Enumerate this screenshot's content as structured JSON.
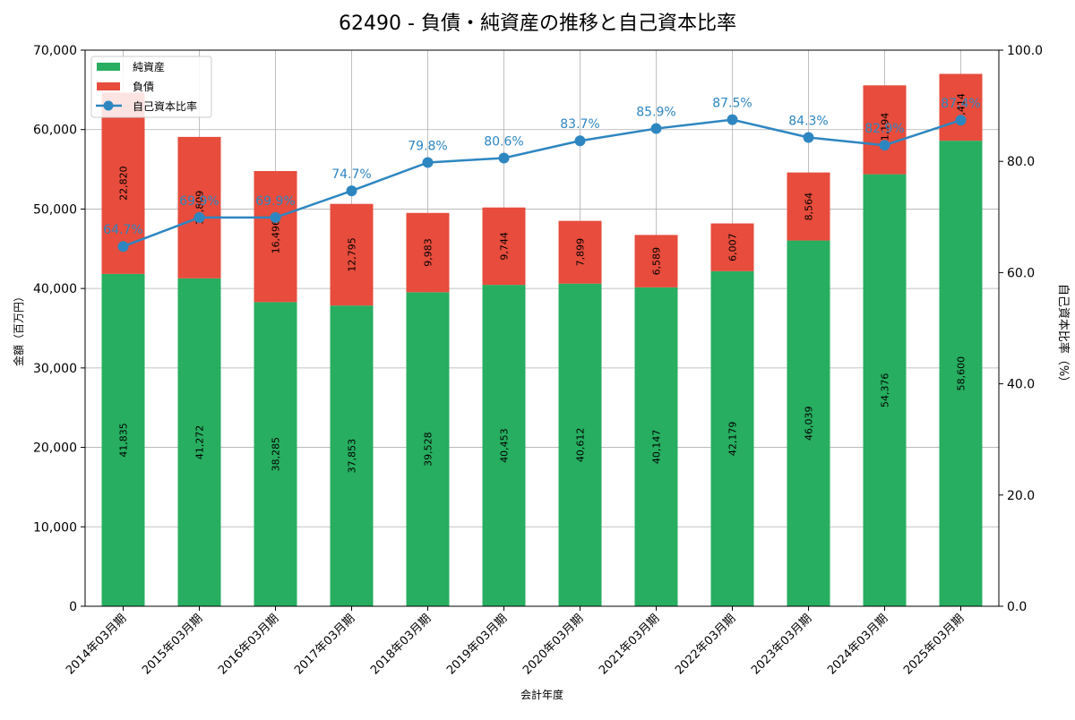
{
  "chart_data": {
    "type": "bar",
    "title": "62490 - 負債・純資産の推移と自己資本比率",
    "xlabel": "会計年度",
    "ylabel": "金額（百万円）",
    "y2label": "自己資本比率（%）",
    "ylim": [
      0,
      70000
    ],
    "y2lim": [
      0,
      100
    ],
    "yticks": [
      "0",
      "10,000",
      "20,000",
      "30,000",
      "40,000",
      "50,000",
      "60,000",
      "70,000"
    ],
    "y2ticks": [
      "0.0",
      "20.0",
      "40.0",
      "60.0",
      "80.0",
      "100.0"
    ],
    "grid": true,
    "legend_position": "top-left",
    "stacked": true,
    "categories": [
      "2014年03月期",
      "2015年03月期",
      "2016年03月期",
      "2017年03月期",
      "2018年03月期",
      "2019年03月期",
      "2020年03月期",
      "2021年03月期",
      "2022年03月期",
      "2023年03月期",
      "2024年03月期",
      "2025年03月期"
    ],
    "series": [
      {
        "name": "純資産",
        "kind": "bar",
        "axis": "left",
        "color": "#27ae60",
        "values": [
          41835,
          41272,
          38285,
          37853,
          39528,
          40453,
          40612,
          40147,
          42179,
          46039,
          54376,
          58600
        ],
        "labels": [
          "41,835",
          "41,272",
          "38,285",
          "37,853",
          "39,528",
          "40,453",
          "40,612",
          "40,147",
          "42,179",
          "46,039",
          "54,376",
          "58,600"
        ]
      },
      {
        "name": "負債",
        "kind": "bar",
        "axis": "left",
        "color": "#e74c3c",
        "values": [
          22820,
          17809,
          16496,
          12795,
          9983,
          9744,
          7899,
          6589,
          6007,
          8564,
          11194,
          8414
        ],
        "labels": [
          "22,820",
          "17,809",
          "16,496",
          "12,795",
          "9,983",
          "9,744",
          "7,899",
          "6,589",
          "6,007",
          "8,564",
          "11,194",
          "8,414"
        ]
      },
      {
        "name": "自己資本比率",
        "kind": "line",
        "axis": "right",
        "color": "#2e86c1",
        "values": [
          64.7,
          69.9,
          69.9,
          74.7,
          79.8,
          80.6,
          83.7,
          85.9,
          87.5,
          84.3,
          82.9,
          87.4
        ],
        "labels": [
          "64.7%",
          "69.9%",
          "69.9%",
          "74.7%",
          "79.8%",
          "80.6%",
          "83.7%",
          "85.9%",
          "87.5%",
          "84.3%",
          "82.9%",
          "87.4%"
        ]
      }
    ]
  }
}
